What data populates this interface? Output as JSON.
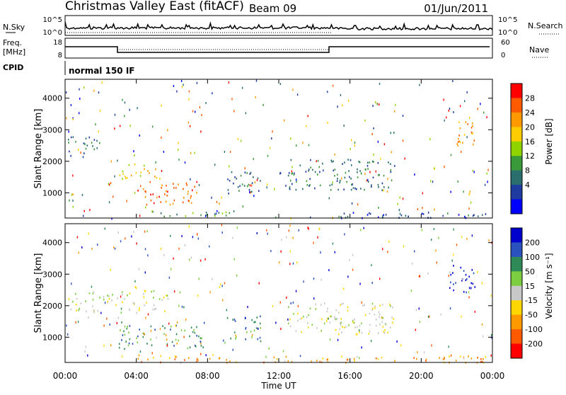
{
  "header": {
    "station": "Christmas Valley East (fitACF)",
    "beam": "Beam 09",
    "date": "01/Jun/2011"
  },
  "strip_panels": {
    "nsky_label": "N.Sky",
    "nsky_ticks": [
      "10^5",
      "10^0"
    ],
    "nsearch_label": "N.Search",
    "freq_label_1": "Freq.",
    "freq_label_2": "[MHz]",
    "freq_ticks": [
      "18",
      "8"
    ],
    "nave_ticks": [
      "60",
      "0"
    ],
    "nave_label": "Nave",
    "cpid_label": "CPID",
    "cpid_text": "normal 150 IF"
  },
  "chart_data": [
    {
      "type": "heatmap",
      "name": "power",
      "ylabel": "Slant Range [km]",
      "xlabel": "Time UT",
      "xticks": [
        "00:00",
        "04:00",
        "08:00",
        "12:00",
        "16:00",
        "20:00",
        "00:00"
      ],
      "yticks": [
        "1000",
        "2000",
        "3000",
        "4000"
      ],
      "xlim": [
        0,
        24
      ],
      "ylim": [
        200,
        4600
      ],
      "colorbar": {
        "label": "Power [dB]",
        "ticks": [
          "28",
          "24",
          "20",
          "16",
          "12",
          "8",
          "4"
        ],
        "colors": [
          "#ff0000",
          "#ff5a00",
          "#ff9900",
          "#ffcc00",
          "#8fd400",
          "#3a9a3a",
          "#2a6e6e",
          "#1e3ca0",
          "#0000ff"
        ]
      },
      "echo_regions": [
        {
          "t0": 0.1,
          "t1": 2.2,
          "r0": 2250,
          "r1": 2800,
          "level": 8
        },
        {
          "t0": 3.0,
          "t1": 5.5,
          "r0": 1450,
          "r1": 1950,
          "level": 20
        },
        {
          "t0": 4.0,
          "t1": 7.5,
          "r0": 650,
          "r1": 1400,
          "level": 28
        },
        {
          "t0": 4.8,
          "t1": 9.5,
          "r0": 230,
          "r1": 450,
          "level": 12
        },
        {
          "t0": 9.0,
          "t1": 11.0,
          "r0": 900,
          "r1": 1700,
          "level": 8
        },
        {
          "t0": 12.5,
          "t1": 18.5,
          "r0": 1100,
          "r1": 2100,
          "level": 8
        },
        {
          "t0": 13.0,
          "t1": 24.0,
          "r0": 220,
          "r1": 400,
          "level": 6
        },
        {
          "t0": 21.5,
          "t1": 23.0,
          "r0": 2500,
          "r1": 3300,
          "level": 24
        }
      ]
    },
    {
      "type": "heatmap",
      "name": "velocity",
      "ylabel": "Slant Range [km]",
      "xlabel": "Time UT",
      "xticks": [
        "00:00",
        "04:00",
        "08:00",
        "12:00",
        "16:00",
        "20:00",
        "00:00"
      ],
      "yticks": [
        "1000",
        "2000",
        "3000",
        "4000"
      ],
      "xlim": [
        0,
        24
      ],
      "ylim": [
        200,
        4600
      ],
      "colorbar": {
        "label": "Velocity [m s⁻¹]",
        "ticks": [
          "200",
          "100",
          "50",
          "15",
          "-15",
          "-50",
          "-100",
          "-200"
        ],
        "colors": [
          "#0000cc",
          "#2a52be",
          "#2e8b57",
          "#7ccd3f",
          "#c8c8c8",
          "#ffd700",
          "#ff9900",
          "#ff5a00",
          "#ff0000"
        ]
      },
      "echo_regions": [
        {
          "t0": 0.1,
          "t1": 5.8,
          "r0": 1800,
          "r1": 2500,
          "velocity": 0
        },
        {
          "t0": 3.0,
          "t1": 7.8,
          "r0": 650,
          "r1": 1400,
          "velocity": 40
        },
        {
          "t0": 9.0,
          "t1": 11.0,
          "r0": 900,
          "r1": 1700,
          "velocity": 40
        },
        {
          "t0": 12.5,
          "t1": 18.5,
          "r0": 1100,
          "r1": 2100,
          "velocity": 0
        },
        {
          "t0": 4.0,
          "t1": 24.0,
          "r0": 220,
          "r1": 420,
          "velocity": -60
        },
        {
          "t0": 21.5,
          "t1": 23.0,
          "r0": 2400,
          "r1": 3300,
          "velocity": 200
        }
      ]
    }
  ]
}
